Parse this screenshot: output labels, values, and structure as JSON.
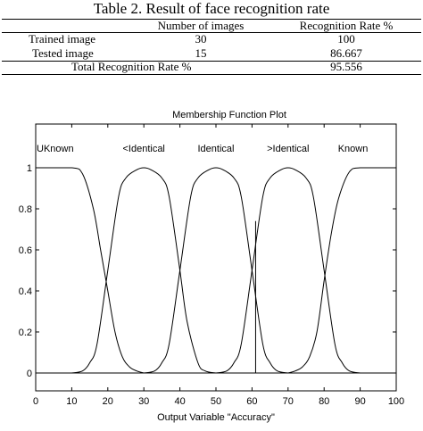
{
  "table": {
    "caption": "Table 2. Result of face recognition rate",
    "headers": [
      "",
      "Number of images",
      "Recognition Rate %"
    ],
    "rows": [
      [
        "Trained image",
        "30",
        "100"
      ],
      [
        "Tested image",
        "15",
        "86.667"
      ]
    ],
    "total": {
      "label": "Total Recognition Rate %",
      "value": "95.556"
    }
  },
  "chart_data": {
    "type": "line",
    "title": "Membership Function Plot",
    "xlabel": "Output Variable \"Accuracy\"",
    "ylabel": "",
    "xlim": [
      0,
      100
    ],
    "ylim": [
      0,
      1
    ],
    "xticks": [
      "0",
      "10",
      "20",
      "30",
      "40",
      "50",
      "60",
      "70",
      "80",
      "90",
      "100"
    ],
    "yticks": [
      "0",
      "0.2",
      "0.4",
      "0.6",
      "0.8",
      "1"
    ],
    "grid": false,
    "line_color": "#000000",
    "series": [
      {
        "name": "UKnown",
        "x": [
          0,
          10,
          13,
          16,
          18,
          20,
          22,
          24,
          26,
          28,
          30
        ],
        "y": [
          1,
          1,
          0.97,
          0.8,
          0.6,
          0.4,
          0.2,
          0.08,
          0.03,
          0.01,
          0
        ]
      },
      {
        "name": "<Identical",
        "x": [
          10,
          13,
          15,
          17,
          20,
          23,
          25,
          28,
          30,
          32,
          35,
          37,
          40,
          42,
          45,
          47,
          50
        ],
        "y": [
          0,
          0.01,
          0.05,
          0.14,
          0.5,
          0.86,
          0.95,
          0.99,
          1,
          0.99,
          0.95,
          0.86,
          0.5,
          0.25,
          0.05,
          0.01,
          0
        ]
      },
      {
        "name": "Identical",
        "x": [
          30,
          33,
          35,
          37,
          40,
          43,
          45,
          48,
          50,
          52,
          55,
          57,
          60,
          63,
          65,
          67,
          70
        ],
        "y": [
          0,
          0.01,
          0.05,
          0.14,
          0.5,
          0.86,
          0.95,
          0.99,
          1,
          0.99,
          0.95,
          0.86,
          0.5,
          0.14,
          0.05,
          0.01,
          0
        ]
      },
      {
        "name": ">Identical",
        "x": [
          50,
          53,
          55,
          57,
          60,
          63,
          65,
          68,
          70,
          72,
          75,
          77,
          80,
          83,
          85,
          87,
          90
        ],
        "y": [
          0,
          0.01,
          0.05,
          0.14,
          0.5,
          0.86,
          0.95,
          0.99,
          1,
          0.99,
          0.95,
          0.86,
          0.5,
          0.14,
          0.05,
          0.01,
          0
        ]
      },
      {
        "name": "Known",
        "x": [
          70,
          72,
          74,
          76,
          78,
          80,
          82,
          84,
          87,
          90,
          100
        ],
        "y": [
          0,
          0.01,
          0.03,
          0.08,
          0.2,
          0.45,
          0.68,
          0.85,
          0.98,
          1,
          1
        ]
      }
    ],
    "marker": {
      "x": 61,
      "y": [
        0,
        0.74
      ]
    }
  }
}
